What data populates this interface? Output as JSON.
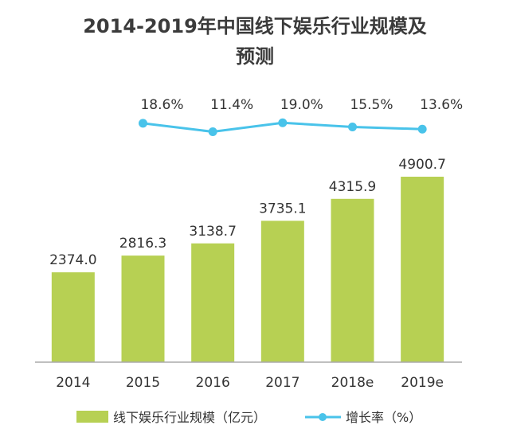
{
  "chart_data": {
    "type": "bar",
    "title_lines": [
      "2014-2019年中国线下娱乐行业规模及",
      "预测"
    ],
    "categories": [
      "2014",
      "2015",
      "2016",
      "2017",
      "2018e",
      "2019e"
    ],
    "series": [
      {
        "name": "线下娱乐行业规模（亿元）",
        "type": "bar",
        "values": [
          2374.0,
          2816.3,
          3138.7,
          3735.1,
          4315.9,
          4900.7
        ],
        "labels": [
          "2374.0",
          "2816.3",
          "3138.7",
          "3735.1",
          "4315.9",
          "4900.7"
        ],
        "color": "#b7d053"
      },
      {
        "name": "增长率（%）",
        "type": "line",
        "x": [
          "2015",
          "2016",
          "2017",
          "2018e",
          "2019e"
        ],
        "values": [
          18.6,
          11.4,
          19.0,
          15.5,
          13.6
        ],
        "labels": [
          "18.6%",
          "11.4%",
          "19.0%",
          "15.5%",
          "13.6%"
        ],
        "color": "#49c3ea"
      }
    ],
    "ylim": [
      0,
      5200
    ],
    "growth_ylim": [
      0,
      100
    ],
    "grid": false,
    "legend_position": "bottom"
  }
}
